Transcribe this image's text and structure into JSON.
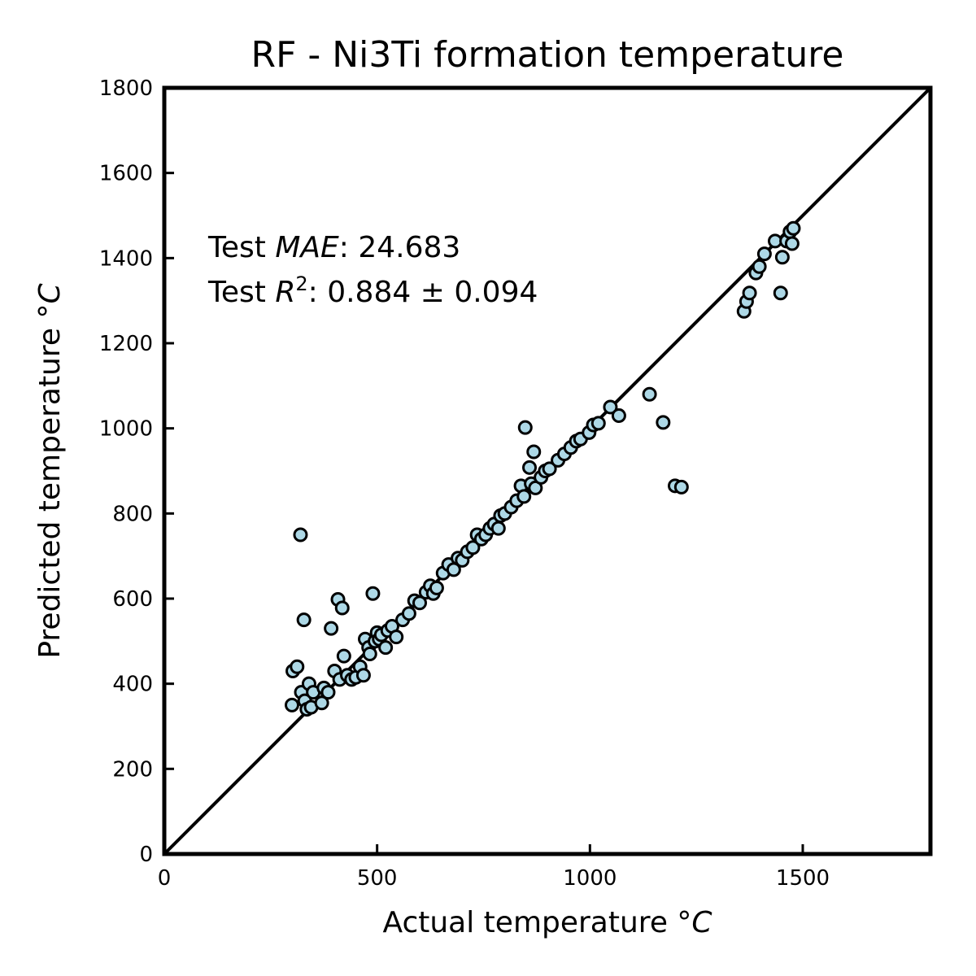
{
  "chart_data": {
    "type": "scatter",
    "title": "RF - Ni3Ti formation temperature",
    "xlabel_prefix": "Actual temperature °",
    "xlabel_unit": "C",
    "ylabel_prefix": "Predicted temperature °",
    "ylabel_unit": "C",
    "xlim": [
      0,
      1800
    ],
    "ylim": [
      0,
      1800
    ],
    "xticks": [
      0,
      500,
      1000,
      1500
    ],
    "yticks": [
      0,
      200,
      400,
      600,
      800,
      1000,
      1200,
      1400,
      1600,
      1800
    ],
    "reference_line": "y = x",
    "grid": false,
    "marker_fill": "#add8e6",
    "marker_edge": "#000000",
    "annotation": {
      "mae_label": "Test ",
      "mae_symbol": "MAE",
      "mae_value": ": 24.683",
      "r2_label": "Test ",
      "r2_symbol": "R",
      "r2_exponent": "2",
      "r2_value": ": 0.884 ± 0.094"
    },
    "points": [
      [
        300,
        350
      ],
      [
        302,
        430
      ],
      [
        312,
        440
      ],
      [
        320,
        750
      ],
      [
        322,
        380
      ],
      [
        328,
        550
      ],
      [
        330,
        360
      ],
      [
        335,
        340
      ],
      [
        340,
        400
      ],
      [
        345,
        345
      ],
      [
        350,
        380
      ],
      [
        370,
        355
      ],
      [
        375,
        390
      ],
      [
        385,
        380
      ],
      [
        392,
        530
      ],
      [
        400,
        430
      ],
      [
        408,
        598
      ],
      [
        412,
        410
      ],
      [
        418,
        578
      ],
      [
        422,
        465
      ],
      [
        430,
        420
      ],
      [
        440,
        410
      ],
      [
        450,
        415
      ],
      [
        460,
        440
      ],
      [
        468,
        420
      ],
      [
        472,
        505
      ],
      [
        480,
        485
      ],
      [
        483,
        470
      ],
      [
        490,
        612
      ],
      [
        495,
        500
      ],
      [
        500,
        520
      ],
      [
        505,
        505
      ],
      [
        510,
        515
      ],
      [
        520,
        485
      ],
      [
        525,
        525
      ],
      [
        535,
        535
      ],
      [
        545,
        510
      ],
      [
        560,
        550
      ],
      [
        575,
        565
      ],
      [
        588,
        595
      ],
      [
        600,
        590
      ],
      [
        615,
        615
      ],
      [
        625,
        630
      ],
      [
        632,
        612
      ],
      [
        640,
        625
      ],
      [
        655,
        660
      ],
      [
        668,
        680
      ],
      [
        680,
        668
      ],
      [
        690,
        695
      ],
      [
        700,
        690
      ],
      [
        712,
        710
      ],
      [
        725,
        720
      ],
      [
        735,
        750
      ],
      [
        745,
        740
      ],
      [
        755,
        750
      ],
      [
        765,
        765
      ],
      [
        775,
        775
      ],
      [
        785,
        765
      ],
      [
        790,
        795
      ],
      [
        800,
        800
      ],
      [
        815,
        815
      ],
      [
        828,
        830
      ],
      [
        838,
        865
      ],
      [
        845,
        840
      ],
      [
        848,
        1002
      ],
      [
        858,
        908
      ],
      [
        862,
        870
      ],
      [
        868,
        945
      ],
      [
        872,
        860
      ],
      [
        885,
        885
      ],
      [
        895,
        900
      ],
      [
        905,
        905
      ],
      [
        925,
        925
      ],
      [
        940,
        940
      ],
      [
        955,
        955
      ],
      [
        968,
        970
      ],
      [
        978,
        975
      ],
      [
        998,
        990
      ],
      [
        1008,
        1008
      ],
      [
        1020,
        1012
      ],
      [
        1048,
        1050
      ],
      [
        1068,
        1030
      ],
      [
        1140,
        1080
      ],
      [
        1172,
        1014
      ],
      [
        1200,
        865
      ],
      [
        1215,
        862
      ],
      [
        1362,
        1275
      ],
      [
        1368,
        1298
      ],
      [
        1375,
        1318
      ],
      [
        1390,
        1365
      ],
      [
        1398,
        1380
      ],
      [
        1410,
        1410
      ],
      [
        1435,
        1440
      ],
      [
        1448,
        1318
      ],
      [
        1452,
        1402
      ],
      [
        1462,
        1440
      ],
      [
        1470,
        1462
      ],
      [
        1475,
        1434
      ],
      [
        1478,
        1470
      ]
    ]
  }
}
